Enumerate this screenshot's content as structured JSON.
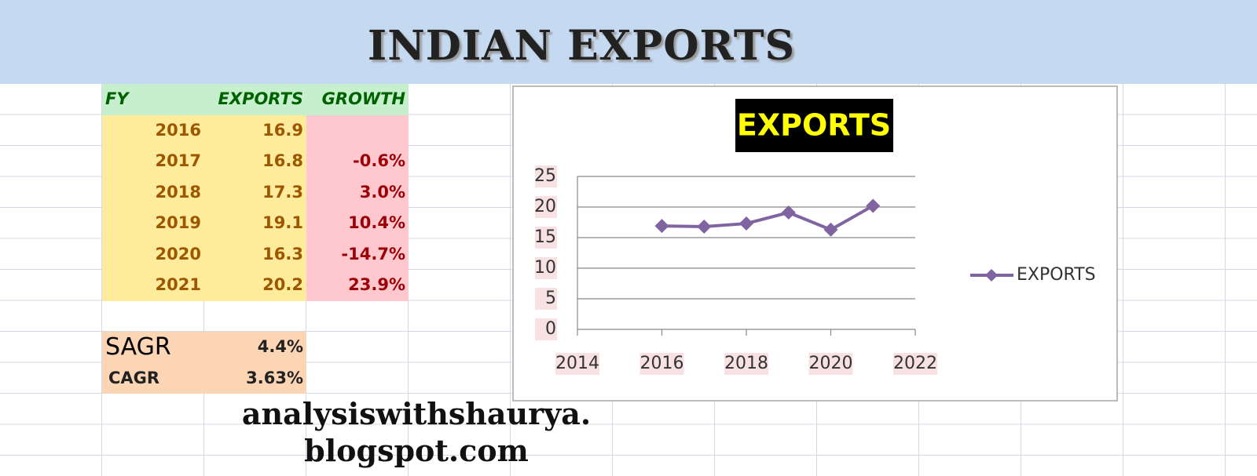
{
  "header": {
    "title": "INDIAN EXPORTS"
  },
  "table": {
    "columns": [
      "FY",
      "EXPORTS",
      "GROWTH"
    ],
    "rows": [
      [
        "2016",
        "16.9"
      ],
      [
        "2017",
        "16.8",
        "-0.6%"
      ],
      [
        "2018",
        "17.3",
        "3.0%"
      ],
      [
        "2019",
        "19.1",
        "10.4%"
      ],
      [
        "2020",
        "16.3",
        "-14.7%"
      ],
      [
        "2021",
        "20.2",
        "23.9%"
      ]
    ]
  },
  "summary": [
    [
      "SAGR",
      "4.4%"
    ],
    [
      "CAGR",
      "3.63%"
    ]
  ],
  "footer": {
    "lines": [
      "analysiswithshaurya.",
      "blogspot.com"
    ]
  },
  "chart_data": {
    "type": "line",
    "title": "EXPORTS",
    "x": [
      2016,
      2017,
      2018,
      2019,
      2020,
      2021
    ],
    "series": [
      {
        "name": "EXPORTS",
        "color": "#8064a2",
        "values": [
          16.9,
          16.8,
          17.3,
          19.1,
          16.3,
          20.2
        ]
      }
    ],
    "xlim": [
      2014,
      2022
    ],
    "xticks": [
      2014,
      2016,
      2018,
      2020,
      2022
    ],
    "ylim": [
      0,
      25
    ],
    "yticks": [
      0,
      5,
      10,
      15,
      20,
      25
    ],
    "grid": true,
    "legend": "right"
  }
}
